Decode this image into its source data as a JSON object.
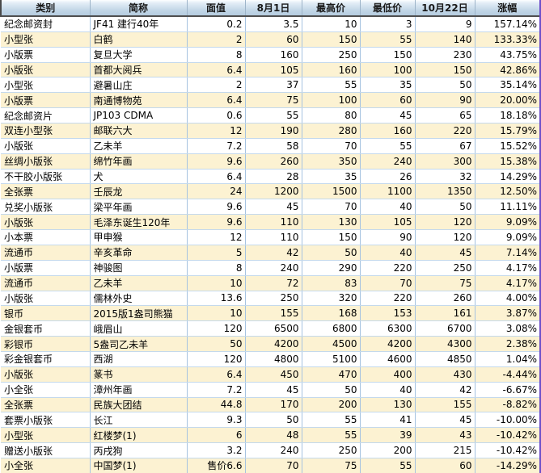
{
  "chart_data": {
    "type": "table",
    "columns": [
      "类别",
      "简称",
      "面值",
      "8月1日",
      "最高价",
      "最低价",
      "10月22日",
      "涨幅"
    ],
    "rows": [
      [
        "纪念邮资封",
        "JF41 建行40年",
        "0.2",
        "3.5",
        "10",
        "3",
        "9",
        "157.14%"
      ],
      [
        "小型张",
        "白鹤",
        "2",
        "60",
        "150",
        "55",
        "140",
        "133.33%"
      ],
      [
        "小版票",
        "复旦大学",
        "8",
        "160",
        "250",
        "150",
        "230",
        "43.75%"
      ],
      [
        "小版张",
        "首都大阅兵",
        "6.4",
        "105",
        "160",
        "100",
        "150",
        "42.86%"
      ],
      [
        "小型张",
        "避暑山庄",
        "2",
        "37",
        "55",
        "35",
        "50",
        "35.14%"
      ],
      [
        "小版票",
        "南通博物苑",
        "6.4",
        "75",
        "100",
        "60",
        "90",
        "20.00%"
      ],
      [
        "纪念邮资片",
        "JP103 CDMA",
        "0.6",
        "55",
        "80",
        "45",
        "65",
        "18.18%"
      ],
      [
        "双连小型张",
        "邮联六大",
        "12",
        "190",
        "280",
        "160",
        "220",
        "15.79%"
      ],
      [
        "小版张",
        "乙未羊",
        "7.2",
        "58",
        "70",
        "55",
        "67",
        "15.52%"
      ],
      [
        "丝绸小版张",
        "绵竹年画",
        "9.6",
        "260",
        "350",
        "240",
        "300",
        "15.38%"
      ],
      [
        "不干胶小版张",
        "犬",
        "6.4",
        "28",
        "35",
        "26",
        "32",
        "14.29%"
      ],
      [
        "全张票",
        "壬辰龙",
        "24",
        "1200",
        "1500",
        "1100",
        "1350",
        "12.50%"
      ],
      [
        "兑奖小版张",
        "梁平年画",
        "9.6",
        "45",
        "70",
        "40",
        "50",
        "11.11%"
      ],
      [
        "小版张",
        "毛泽东诞生120年",
        "9.6",
        "110",
        "130",
        "105",
        "120",
        "9.09%"
      ],
      [
        "小本票",
        "甲申猴",
        "12",
        "110",
        "150",
        "90",
        "120",
        "9.09%"
      ],
      [
        "流通币",
        "辛亥革命",
        "5",
        "42",
        "50",
        "40",
        "45",
        "7.14%"
      ],
      [
        "小版票",
        "神骏图",
        "8",
        "240",
        "290",
        "220",
        "250",
        "4.17%"
      ],
      [
        "流通币",
        "乙未羊",
        "10",
        "72",
        "83",
        "70",
        "75",
        "4.17%"
      ],
      [
        "小版张",
        "儒林外史",
        "13.6",
        "250",
        "320",
        "220",
        "260",
        "4.00%"
      ],
      [
        "银币",
        "2015版1盎司熊猫",
        "10",
        "155",
        "168",
        "153",
        "161",
        "3.87%"
      ],
      [
        "金银套币",
        "峨眉山",
        "120",
        "6500",
        "6800",
        "6300",
        "6700",
        "3.08%"
      ],
      [
        "彩银币",
        "5盎司乙未羊",
        "50",
        "4200",
        "4500",
        "4200",
        "4300",
        "2.38%"
      ],
      [
        "彩金银套币",
        "西湖",
        "120",
        "4800",
        "5100",
        "4600",
        "4850",
        "1.04%"
      ],
      [
        "小版张",
        "篆书",
        "6.4",
        "450",
        "470",
        "400",
        "430",
        "-4.44%"
      ],
      [
        "小全张",
        "漳州年画",
        "7.2",
        "45",
        "50",
        "40",
        "42",
        "-6.67%"
      ],
      [
        "全张票",
        "民族大团结",
        "44.8",
        "170",
        "200",
        "130",
        "155",
        "-8.82%"
      ],
      [
        "套票小版张",
        "长江",
        "9.3",
        "50",
        "55",
        "41",
        "45",
        "-10.00%"
      ],
      [
        "小型张",
        "红楼梦(1)",
        "6",
        "48",
        "55",
        "39",
        "43",
        "-10.42%"
      ],
      [
        "赠送小版张",
        "丙戌狗",
        "3.2",
        "240",
        "250",
        "200",
        "215",
        "-10.42%"
      ],
      [
        "小全张",
        "中国梦(1)",
        "售价6.6",
        "70",
        "75",
        "55",
        "60",
        "-14.29%"
      ]
    ]
  },
  "colors": {
    "header_bg": "#c3d7e7",
    "row_alt_bg": "#fcf2d2",
    "grid_v": "#a6c3e0",
    "grid_h": "#c4d9ec",
    "right_border": "#6e4fc9"
  }
}
